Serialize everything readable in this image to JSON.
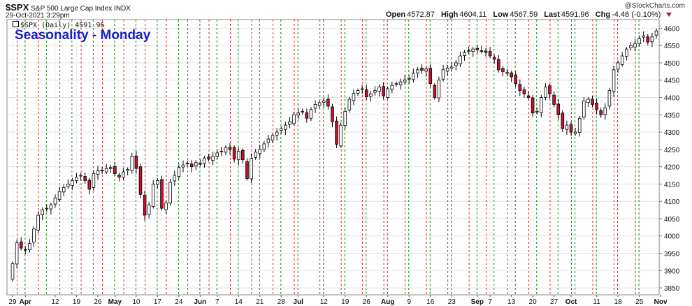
{
  "header": {
    "symbol": "$SPX",
    "description": "S&P 500 Large Cap Index INDX",
    "datetime": "29-Oct-2021 3:29pm",
    "brand": "@StockCharts.com",
    "quote": {
      "open_label": "Open",
      "open": "4572.87",
      "high_label": "High",
      "high": "4604.11",
      "low_label": "Low",
      "low": "4567.59",
      "last_label": "Last",
      "last": "4591.96",
      "chg_label": "Chg",
      "chg": "-4.46 (-0.10%)"
    },
    "legend": "$SPX (Daily) 4591.96"
  },
  "colors": {
    "up": "#ffffff",
    "down": "#c8102e",
    "outline": "#000000",
    "red_line": "#d62728",
    "green_line": "#1a8a1a",
    "title": "#1b20c8"
  },
  "chart_data": {
    "type": "candlestick",
    "title": "Seasonality - Monday",
    "ylim": [
      3830,
      4625
    ],
    "y_ticks": [
      3850,
      3900,
      3950,
      4000,
      4050,
      4100,
      4150,
      4200,
      4250,
      4300,
      4350,
      4400,
      4450,
      4500,
      4550,
      4600
    ],
    "grid": true,
    "y_axis_side": "right",
    "x_labels": [
      {
        "day": 0,
        "label": "29"
      },
      {
        "day": 3,
        "label": "Apr"
      },
      {
        "day": 10,
        "label": "12"
      },
      {
        "day": 15,
        "label": "19"
      },
      {
        "day": 20,
        "label": "26"
      },
      {
        "day": 24,
        "label": "May"
      },
      {
        "day": 29,
        "label": "10"
      },
      {
        "day": 34,
        "label": "17"
      },
      {
        "day": 39,
        "label": "24"
      },
      {
        "day": 44,
        "label": "Jun"
      },
      {
        "day": 48,
        "label": "7"
      },
      {
        "day": 53,
        "label": "14"
      },
      {
        "day": 58,
        "label": "21"
      },
      {
        "day": 63,
        "label": "28"
      },
      {
        "day": 67,
        "label": "Jul"
      },
      {
        "day": 73,
        "label": "12"
      },
      {
        "day": 78,
        "label": "19"
      },
      {
        "day": 83,
        "label": "26"
      },
      {
        "day": 88,
        "label": "Aug"
      },
      {
        "day": 93,
        "label": "9"
      },
      {
        "day": 98,
        "label": "16"
      },
      {
        "day": 103,
        "label": "23"
      },
      {
        "day": 109,
        "label": "Sep"
      },
      {
        "day": 112,
        "label": "7"
      },
      {
        "day": 117,
        "label": "13"
      },
      {
        "day": 122,
        "label": "20"
      },
      {
        "day": 127,
        "label": "27"
      },
      {
        "day": 131,
        "label": "Oct"
      },
      {
        "day": 137,
        "label": "11"
      },
      {
        "day": 142,
        "label": "18"
      },
      {
        "day": 147,
        "label": "25"
      },
      {
        "day": 152,
        "label": "Nov"
      }
    ],
    "red_lines": [
      1,
      6,
      11,
      16,
      21,
      26,
      31,
      36,
      41,
      46,
      51,
      56,
      61,
      66,
      72,
      77,
      82,
      87,
      92,
      97,
      102,
      107,
      111,
      116,
      121,
      126,
      131,
      136,
      141,
      146
    ],
    "green_lines": [
      3,
      8,
      14,
      19,
      24,
      29,
      34,
      39,
      44,
      48,
      53,
      58,
      63,
      67,
      73,
      78,
      83,
      88,
      93,
      98,
      103,
      109,
      113,
      118,
      123,
      128,
      132,
      137,
      142,
      147
    ],
    "closes": [
      3920,
      3980,
      3965,
      3960,
      3978,
      4020,
      4060,
      4075,
      4080,
      4090,
      4110,
      4128,
      4140,
      4150,
      4160,
      4170,
      4175,
      4160,
      4135,
      4180,
      4188,
      4190,
      4195,
      4198,
      4180,
      4170,
      4185,
      4192,
      4230,
      4195,
      4120,
      4060,
      4090,
      4150,
      4160,
      4080,
      4095,
      4155,
      4175,
      4198,
      4205,
      4210,
      4200,
      4212,
      4210,
      4225,
      4222,
      4230,
      4240,
      4245,
      4255,
      4250,
      4222,
      4245,
      4220,
      4166,
      4224,
      4242,
      4250,
      4266,
      4280,
      4290,
      4300,
      4310,
      4320,
      4330,
      4350,
      4355,
      4360,
      4340,
      4365,
      4380,
      4385,
      4390,
      4375,
      4330,
      4265,
      4320,
      4360,
      4395,
      4412,
      4420,
      4425,
      4402,
      4410,
      4420,
      4430,
      4405,
      4425,
      4435,
      4440,
      4445,
      4450,
      4455,
      4470,
      4480,
      4478,
      4482,
      4440,
      4400,
      4450,
      4480,
      4485,
      4488,
      4500,
      4520,
      4530,
      4535,
      4540,
      4538,
      4535,
      4530,
      4520,
      4510,
      4480,
      4475,
      4470,
      4460,
      4440,
      4420,
      4410,
      4400,
      4355,
      4360,
      4400,
      4430,
      4410,
      4380,
      4350,
      4310,
      4320,
      4300,
      4300,
      4340,
      4390,
      4395,
      4380,
      4365,
      4350,
      4370,
      4420,
      4480,
      4500,
      4520,
      4540,
      4550,
      4555,
      4570,
      4578,
      4560,
      4575,
      4592
    ]
  }
}
